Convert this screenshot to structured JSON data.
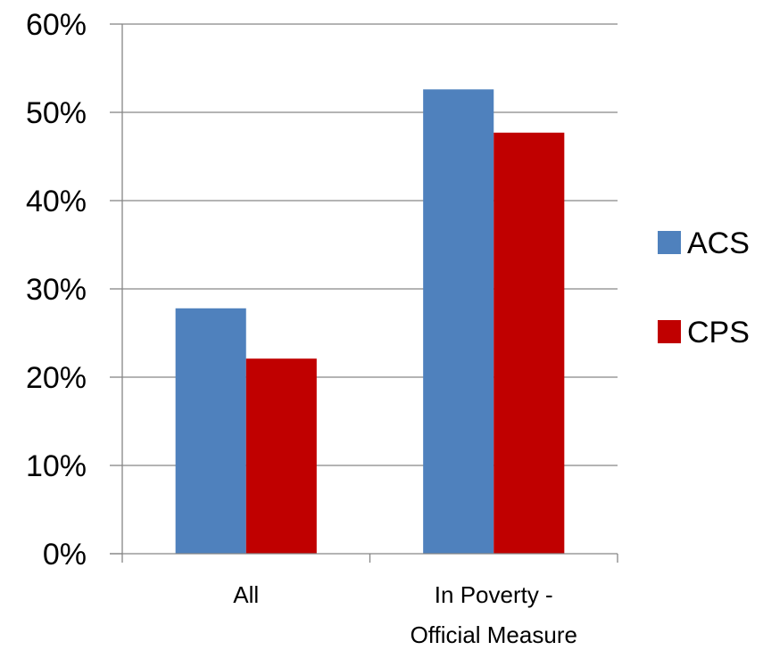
{
  "chart_data": {
    "type": "bar",
    "categories": [
      [
        "All"
      ],
      [
        "In Poverty -",
        "Official Measure"
      ]
    ],
    "series": [
      {
        "name": "ACS",
        "color": "#4F81BD",
        "values": [
          27.8,
          52.6
        ]
      },
      {
        "name": "CPS",
        "color": "#C00000",
        "values": [
          22.1,
          47.7
        ]
      }
    ],
    "ylim": [
      0,
      60
    ],
    "yticks": [
      "0%",
      "10%",
      "20%",
      "30%",
      "40%",
      "50%",
      "60%"
    ],
    "grid": true,
    "legend_position": "right",
    "title": "",
    "xlabel": "",
    "ylabel": ""
  }
}
